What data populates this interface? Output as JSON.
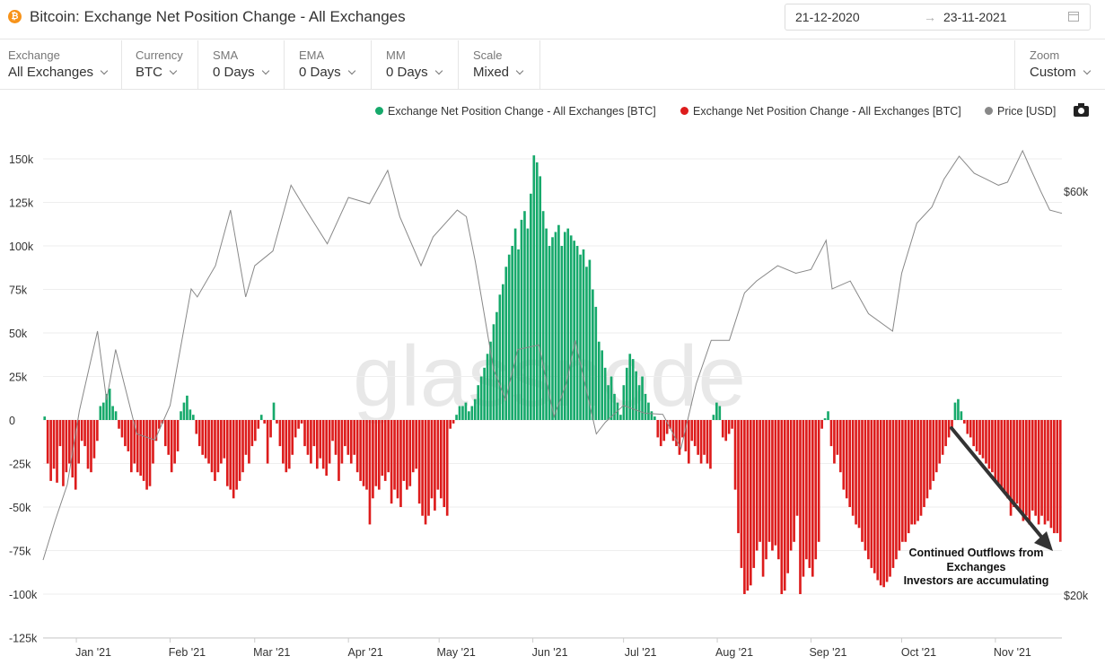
{
  "header": {
    "title": "Bitcoin: Exchange Net Position Change - All Exchanges",
    "logo_glyph": "₿",
    "date_start": "21-12-2020",
    "date_arrow": "→",
    "date_end": "23-11-2021"
  },
  "controls": [
    {
      "label": "Exchange",
      "value": "All Exchanges"
    },
    {
      "label": "Currency",
      "value": "BTC"
    },
    {
      "label": "SMA",
      "value": "0 Days"
    },
    {
      "label": "EMA",
      "value": "0 Days"
    },
    {
      "label": "MM",
      "value": "0 Days"
    },
    {
      "label": "Scale",
      "value": "Mixed"
    },
    {
      "label": "Zoom",
      "value": "Custom"
    }
  ],
  "colors": {
    "positive": "#16a96b",
    "negative": "#dd1c1c",
    "price": "#888888",
    "grid": "#eeeeee",
    "axis_text": "#333333"
  },
  "chart_data": {
    "type": "bar",
    "title": "Bitcoin: Exchange Net Position Change - All Exchanges",
    "legend": [
      {
        "name": "Exchange Net Position Change - All Exchanges [BTC]",
        "color": "#16a96b"
      },
      {
        "name": "Exchange Net Position Change - All Exchanges [BTC]",
        "color": "#dd1c1c"
      },
      {
        "name": "Price [USD]",
        "color": "#888888"
      }
    ],
    "legend_position": "top-right",
    "watermark": "glassnode",
    "x_range": [
      "2020-12-21",
      "2021-11-23"
    ],
    "x_ticks": [
      "Jan '21",
      "Feb '21",
      "Mar '21",
      "Apr '21",
      "May '21",
      "Jun '21",
      "Jul '21",
      "Aug '21",
      "Sep '21",
      "Oct '21",
      "Nov '21"
    ],
    "y_left": {
      "label": "BTC",
      "ticks": [
        "150k",
        "125k",
        "100k",
        "75k",
        "50k",
        "25k",
        "0",
        "-25k",
        "-50k",
        "-75k",
        "-100k",
        "-125k"
      ],
      "range": [
        -125000,
        150000
      ],
      "grid": true
    },
    "y_right": {
      "label": "USD",
      "scale": "log",
      "ticks": [
        "$60k",
        "$20k"
      ]
    },
    "bar_interval_days": 3,
    "series": [
      {
        "name": "Exchange Net Position Change - All Exchanges [BTC]",
        "unit": "BTC",
        "start_date": "2020-12-21",
        "values": [
          2000,
          -25000,
          -35000,
          -28000,
          -36000,
          -15000,
          -38000,
          -30000,
          -25000,
          -33000,
          -40000,
          -25000,
          -12000,
          -15000,
          -28000,
          -30000,
          -22000,
          -12000,
          8000,
          10000,
          15000,
          18000,
          8000,
          5000,
          -5000,
          -10000,
          -15000,
          -18000,
          -30000,
          -25000,
          -30000,
          -32000,
          -35000,
          -40000,
          -38000,
          -25000,
          -12000,
          -5000,
          -2000,
          -15000,
          -20000,
          -30000,
          -25000,
          -18000,
          5000,
          10000,
          14000,
          6000,
          3000,
          -8000,
          -15000,
          -20000,
          -22000,
          -25000,
          -30000,
          -35000,
          -30000,
          -25000,
          -22000,
          -38000,
          -40000,
          -45000,
          -40000,
          -35000,
          -30000,
          -20000,
          -25000,
          -15000,
          -12000,
          -5000,
          3000,
          -2000,
          -25000,
          -10000,
          10000,
          -2000,
          -15000,
          -25000,
          -30000,
          -28000,
          -20000,
          -10000,
          -5000,
          -2000,
          -15000,
          -20000,
          -25000,
          -15000,
          -28000,
          -22000,
          -28000,
          -32000,
          -25000,
          -12000,
          -20000,
          -35000,
          -25000,
          -15000,
          -20000,
          -25000,
          -20000,
          -30000,
          -35000,
          -38000,
          -40000,
          -60000,
          -45000,
          -38000,
          -40000,
          -32000,
          -35000,
          -30000,
          -48000,
          -40000,
          -45000,
          -50000,
          -35000,
          -40000,
          -38000,
          -30000,
          -28000,
          -48000,
          -55000,
          -60000,
          -55000,
          -45000,
          -52000,
          -40000,
          -45000,
          -50000,
          -55000,
          -5000,
          -2000,
          3000,
          8000,
          8000,
          10000,
          5000,
          8000,
          12000,
          20000,
          25000,
          30000,
          38000,
          45000,
          55000,
          62000,
          72000,
          78000,
          88000,
          95000,
          100000,
          110000,
          98000,
          115000,
          120000,
          110000,
          130000,
          152000,
          148000,
          140000,
          120000,
          110000,
          100000,
          105000,
          108000,
          112000,
          100000,
          108000,
          110000,
          106000,
          103000,
          100000,
          95000,
          98000,
          88000,
          92000,
          75000,
          65000,
          45000,
          40000,
          30000,
          20000,
          25000,
          15000,
          10000,
          3000,
          20000,
          30000,
          38000,
          35000,
          28000,
          20000,
          25000,
          15000,
          10000,
          5000,
          2000,
          -10000,
          -15000,
          -12000,
          -8000,
          -5000,
          -12000,
          -15000,
          -20000,
          -10000,
          -18000,
          -25000,
          -12000,
          -15000,
          -20000,
          -25000,
          -20000,
          -25000,
          -28000,
          3000,
          10000,
          8000,
          -10000,
          -12000,
          -8000,
          -5000,
          -40000,
          -65000,
          -85000,
          -100000,
          -98000,
          -95000,
          -85000,
          -75000,
          -70000,
          -90000,
          -80000,
          -70000,
          -75000,
          -72000,
          -80000,
          -100000,
          -98000,
          -88000,
          -75000,
          -70000,
          -55000,
          -100000,
          -90000,
          -80000,
          -85000,
          -90000,
          -80000,
          -70000,
          -5000,
          1000,
          5000,
          -15000,
          -25000,
          -20000,
          -30000,
          -40000,
          -45000,
          -50000,
          -55000,
          -60000,
          -62000,
          -70000,
          -75000,
          -80000,
          -85000,
          -88000,
          -92000,
          -95000,
          -96000,
          -93000,
          -90000,
          -85000,
          -80000,
          -75000,
          -70000,
          -70000,
          -65000,
          -60000,
          -60000,
          -58000,
          -55000,
          -50000,
          -45000,
          -40000,
          -35000,
          -30000,
          -25000,
          -20000,
          -15000,
          -10000,
          -5000,
          10000,
          12000,
          5000,
          -2000,
          -8000,
          -10000,
          -15000,
          -18000,
          -20000,
          -22000,
          -25000,
          -28000,
          -30000,
          -35000,
          -38000,
          -40000,
          -42000,
          -45000,
          -55000,
          -50000,
          -48000,
          -52000,
          -58000,
          -55000,
          -60000,
          -52000,
          -55000,
          -60000,
          -55000,
          -60000,
          -58000,
          -62000,
          -65000,
          -65000,
          -70000
        ]
      },
      {
        "name": "Price [USD]",
        "unit": "USD",
        "points": [
          [
            "2020-12-21",
            22000
          ],
          [
            "2020-12-25",
            24500
          ],
          [
            "2020-12-29",
            27000
          ],
          [
            "2021-01-02",
            33000
          ],
          [
            "2021-01-08",
            41000
          ],
          [
            "2021-01-11",
            34000
          ],
          [
            "2021-01-14",
            39000
          ],
          [
            "2021-01-21",
            31000
          ],
          [
            "2021-01-27",
            30500
          ],
          [
            "2021-02-01",
            33500
          ],
          [
            "2021-02-08",
            46000
          ],
          [
            "2021-02-10",
            45000
          ],
          [
            "2021-02-16",
            49000
          ],
          [
            "2021-02-21",
            57000
          ],
          [
            "2021-02-26",
            45000
          ],
          [
            "2021-03-01",
            49000
          ],
          [
            "2021-03-07",
            51000
          ],
          [
            "2021-03-13",
            61000
          ],
          [
            "2021-03-18",
            57000
          ],
          [
            "2021-03-25",
            52000
          ],
          [
            "2021-04-01",
            59000
          ],
          [
            "2021-04-08",
            58000
          ],
          [
            "2021-04-14",
            63500
          ],
          [
            "2021-04-18",
            56000
          ],
          [
            "2021-04-25",
            49000
          ],
          [
            "2021-04-29",
            53000
          ],
          [
            "2021-05-07",
            57000
          ],
          [
            "2021-05-10",
            56000
          ],
          [
            "2021-05-13",
            49500
          ],
          [
            "2021-05-19",
            37000
          ],
          [
            "2021-05-23",
            34000
          ],
          [
            "2021-05-27",
            39000
          ],
          [
            "2021-06-03",
            39500
          ],
          [
            "2021-06-08",
            32500
          ],
          [
            "2021-06-12",
            35500
          ],
          [
            "2021-06-15",
            40000
          ],
          [
            "2021-06-22",
            31000
          ],
          [
            "2021-06-25",
            32000
          ],
          [
            "2021-07-01",
            33500
          ],
          [
            "2021-07-08",
            32800
          ],
          [
            "2021-07-14",
            32700
          ],
          [
            "2021-07-20",
            29800
          ],
          [
            "2021-07-25",
            35500
          ],
          [
            "2021-07-30",
            40000
          ],
          [
            "2021-08-05",
            40000
          ],
          [
            "2021-08-10",
            45500
          ],
          [
            "2021-08-14",
            47000
          ],
          [
            "2021-08-21",
            49000
          ],
          [
            "2021-08-27",
            48000
          ],
          [
            "2021-09-01",
            48500
          ],
          [
            "2021-09-06",
            52500
          ],
          [
            "2021-09-08",
            46000
          ],
          [
            "2021-09-14",
            47000
          ],
          [
            "2021-09-20",
            43000
          ],
          [
            "2021-09-28",
            41000
          ],
          [
            "2021-10-01",
            48000
          ],
          [
            "2021-10-06",
            55000
          ],
          [
            "2021-10-11",
            57500
          ],
          [
            "2021-10-15",
            62000
          ],
          [
            "2021-10-20",
            66000
          ],
          [
            "2021-10-25",
            63000
          ],
          [
            "2021-10-29",
            62000
          ],
          [
            "2021-11-02",
            61000
          ],
          [
            "2021-11-05",
            61500
          ],
          [
            "2021-11-10",
            67000
          ],
          [
            "2021-11-12",
            64500
          ],
          [
            "2021-11-16",
            60000
          ],
          [
            "2021-11-19",
            57000
          ],
          [
            "2021-11-23",
            56500
          ]
        ]
      }
    ],
    "annotation": {
      "lines": [
        "Continued Outflows from",
        "Exchanges",
        "Investors are accumulating"
      ]
    }
  }
}
